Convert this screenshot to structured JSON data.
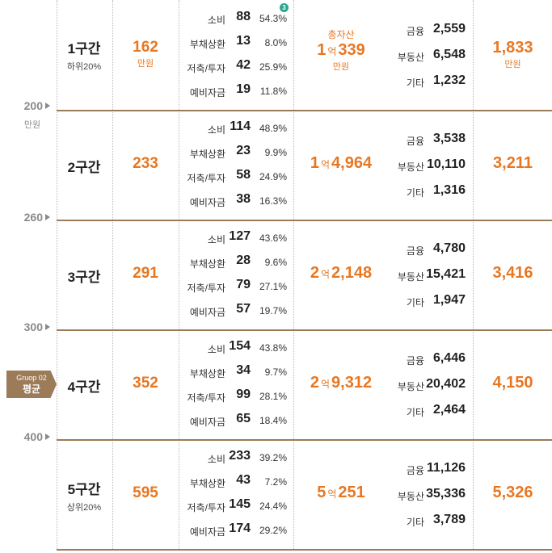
{
  "markers": [
    "200",
    "260",
    "300",
    "400"
  ],
  "marker_unit": "만원",
  "group_badge": {
    "line1": "Gruop 02",
    "line2": "평균"
  },
  "colors": {
    "accent": "#e87722",
    "brown": "#9b7b58",
    "badge": "#2aa58f"
  },
  "annotation_badge": "3",
  "headers": {
    "assets_label": "총자산",
    "unit": "만원",
    "eok": "억"
  },
  "rows": [
    {
      "section": "1구간",
      "section_sub": "하위20%",
      "income": "162",
      "income_unit": "만원",
      "spending": [
        {
          "label": "소비",
          "amount": "88",
          "pct": "54.3%"
        },
        {
          "label": "부채상환",
          "amount": "13",
          "pct": "8.0%"
        },
        {
          "label": "저축/투자",
          "amount": "42",
          "pct": "25.9%"
        },
        {
          "label": "예비자금",
          "amount": "19",
          "pct": "11.8%"
        }
      ],
      "assets_eok": "1",
      "assets_man": "339",
      "asset_breakdown": [
        {
          "label": "금융",
          "amount": "2,559"
        },
        {
          "label": "부동산",
          "amount": "6,548"
        },
        {
          "label": "기타",
          "amount": "1,232"
        }
      ],
      "debt": "1,833",
      "debt_unit": "만원"
    },
    {
      "section": "2구간",
      "section_sub": "",
      "income": "233",
      "income_unit": "",
      "spending": [
        {
          "label": "소비",
          "amount": "114",
          "pct": "48.9%"
        },
        {
          "label": "부채상환",
          "amount": "23",
          "pct": "9.9%"
        },
        {
          "label": "저축/투자",
          "amount": "58",
          "pct": "24.9%"
        },
        {
          "label": "예비자금",
          "amount": "38",
          "pct": "16.3%"
        }
      ],
      "assets_eok": "1",
      "assets_man": "4,964",
      "asset_breakdown": [
        {
          "label": "금융",
          "amount": "3,538"
        },
        {
          "label": "부동산",
          "amount": "10,110"
        },
        {
          "label": "기타",
          "amount": "1,316"
        }
      ],
      "debt": "3,211",
      "debt_unit": ""
    },
    {
      "section": "3구간",
      "section_sub": "",
      "income": "291",
      "income_unit": "",
      "spending": [
        {
          "label": "소비",
          "amount": "127",
          "pct": "43.6%"
        },
        {
          "label": "부채상환",
          "amount": "28",
          "pct": "9.6%"
        },
        {
          "label": "저축/투자",
          "amount": "79",
          "pct": "27.1%"
        },
        {
          "label": "예비자금",
          "amount": "57",
          "pct": "19.7%"
        }
      ],
      "assets_eok": "2",
      "assets_man": "2,148",
      "asset_breakdown": [
        {
          "label": "금융",
          "amount": "4,780"
        },
        {
          "label": "부동산",
          "amount": "15,421"
        },
        {
          "label": "기타",
          "amount": "1,947"
        }
      ],
      "debt": "3,416",
      "debt_unit": ""
    },
    {
      "section": "4구간",
      "section_sub": "",
      "income": "352",
      "income_unit": "",
      "spending": [
        {
          "label": "소비",
          "amount": "154",
          "pct": "43.8%"
        },
        {
          "label": "부채상환",
          "amount": "34",
          "pct": "9.7%"
        },
        {
          "label": "저축/투자",
          "amount": "99",
          "pct": "28.1%"
        },
        {
          "label": "예비자금",
          "amount": "65",
          "pct": "18.4%"
        }
      ],
      "assets_eok": "2",
      "assets_man": "9,312",
      "asset_breakdown": [
        {
          "label": "금융",
          "amount": "6,446"
        },
        {
          "label": "부동산",
          "amount": "20,402"
        },
        {
          "label": "기타",
          "amount": "2,464"
        }
      ],
      "debt": "4,150",
      "debt_unit": ""
    },
    {
      "section": "5구간",
      "section_sub": "상위20%",
      "income": "595",
      "income_unit": "",
      "spending": [
        {
          "label": "소비",
          "amount": "233",
          "pct": "39.2%"
        },
        {
          "label": "부채상환",
          "amount": "43",
          "pct": "7.2%"
        },
        {
          "label": "저축/투자",
          "amount": "145",
          "pct": "24.4%"
        },
        {
          "label": "예비자금",
          "amount": "174",
          "pct": "29.2%"
        }
      ],
      "assets_eok": "5",
      "assets_man": "251",
      "asset_breakdown": [
        {
          "label": "금융",
          "amount": "11,126"
        },
        {
          "label": "부동산",
          "amount": "35,336"
        },
        {
          "label": "기타",
          "amount": "3,789"
        }
      ],
      "debt": "5,326",
      "debt_unit": ""
    }
  ]
}
